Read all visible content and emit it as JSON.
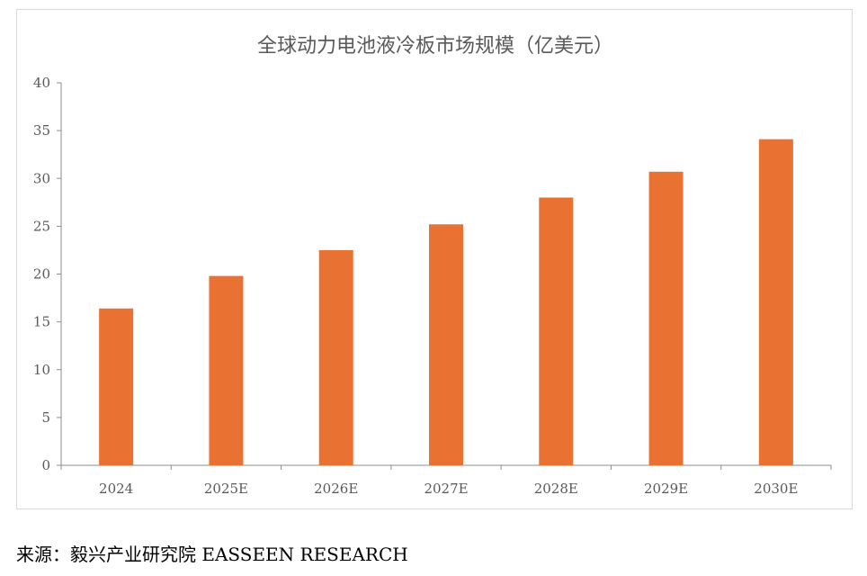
{
  "chart_data": {
    "type": "bar",
    "title": "全球动力电池液冷板市场规模（亿美元）",
    "categories": [
      "2024",
      "2025E",
      "2026E",
      "2027E",
      "2028E",
      "2029E",
      "2030E"
    ],
    "values": [
      16.4,
      19.8,
      22.5,
      25.2,
      28.0,
      30.7,
      34.1
    ],
    "ylim": [
      0,
      40
    ],
    "yticks": [
      0,
      5,
      10,
      15,
      20,
      25,
      30,
      35,
      40
    ],
    "xlabel": "",
    "ylabel": "",
    "grid": false,
    "bar_color": "#E97132"
  },
  "source": "来源：毅兴产业研究院 EASSEEN RESEARCH"
}
